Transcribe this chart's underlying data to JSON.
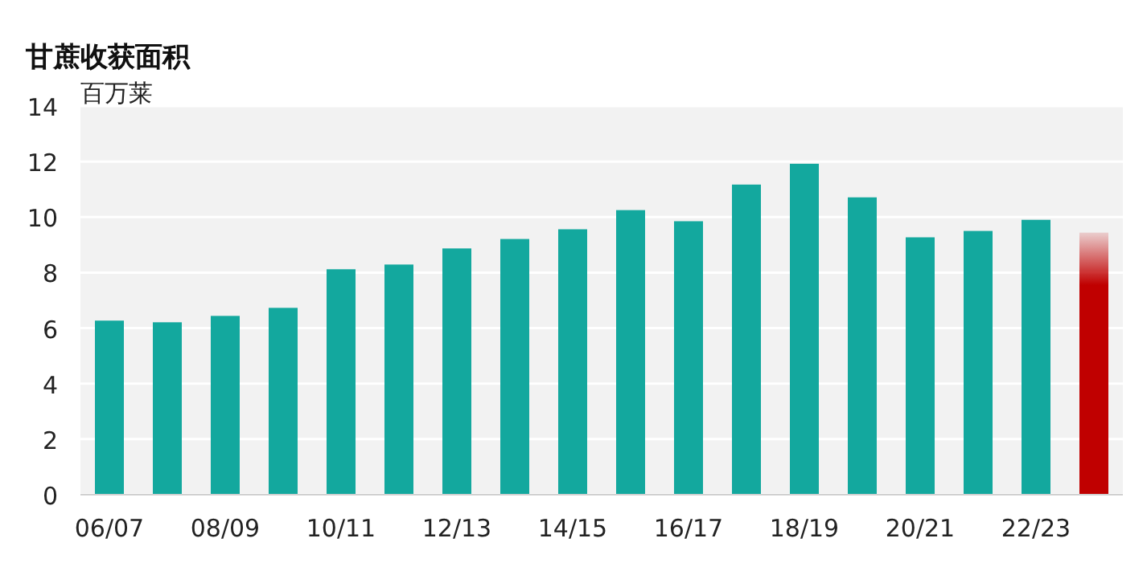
{
  "chart_data": {
    "type": "bar",
    "title": "甘蔗收获面积",
    "ylabel": "百万莱",
    "categories": [
      "06/07",
      null,
      "08/09",
      null,
      "10/11",
      null,
      "12/13",
      null,
      "14/15",
      null,
      "16/17",
      null,
      "18/19",
      null,
      "20/21",
      null,
      "22/23",
      null
    ],
    "values": [
      6.27,
      6.21,
      6.44,
      6.73,
      8.12,
      8.29,
      8.87,
      9.21,
      9.56,
      10.25,
      9.85,
      11.17,
      11.92,
      10.71,
      9.27,
      9.5,
      9.9,
      9.44
    ],
    "colors": [
      "#13a89e",
      "#13a89e",
      "#13a89e",
      "#13a89e",
      "#13a89e",
      "#13a89e",
      "#13a89e",
      "#13a89e",
      "#13a89e",
      "#13a89e",
      "#13a89e",
      "#13a89e",
      "#13a89e",
      "#13a89e",
      "#13a89e",
      "#13a89e",
      "#13a89e",
      "#c00000"
    ],
    "ylim": [
      0,
      14
    ],
    "yticks": [
      0,
      2,
      4,
      6,
      8,
      10,
      12,
      14
    ],
    "grid": "y"
  }
}
